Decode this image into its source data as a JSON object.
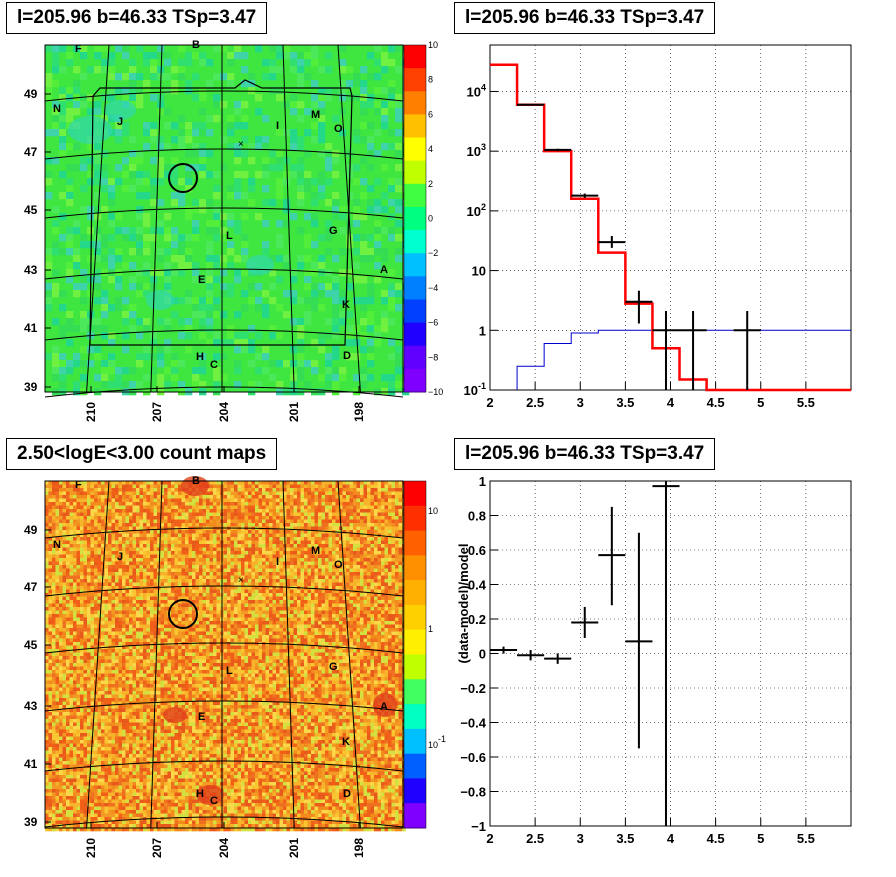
{
  "panels": {
    "tl_title": "l=205.96 b=46.33 TSp=3.47",
    "tr_title": "l=205.96 b=46.33 TSp=3.47",
    "bl_title": "2.50<logE<3.00 count maps",
    "br_title": "l=205.96 b=46.33 TSp=3.47"
  },
  "colors": {
    "tsmap_bg": "#3fe63f",
    "countmap_bg": "#f7a21c",
    "red_line": "#ff0000",
    "blue_line": "#0000cc",
    "data": "#000000"
  },
  "chart_data": [
    {
      "type": "heatmap",
      "name": "ts-map",
      "y_ticks": [
        "39",
        "41",
        "43",
        "45",
        "47",
        "49"
      ],
      "x_ticks": [
        "210",
        "207",
        "204",
        "201",
        "198"
      ],
      "colorbar_ticks": [
        "10",
        "8",
        "6",
        "4",
        "2",
        "0",
        "−2",
        "−4",
        "−6",
        "−8",
        "−10"
      ],
      "source_labels": [
        "F",
        "B",
        "N",
        "J",
        "I",
        "M",
        "O",
        "L",
        "G",
        "E",
        "A",
        "K",
        "H",
        "C",
        "D"
      ]
    },
    {
      "type": "line",
      "name": "spectrum",
      "log_y": true,
      "xlim": [
        2,
        6
      ],
      "ylim": [
        0.1,
        60000
      ],
      "x_ticks": [
        "2",
        "2.5",
        "3",
        "3.5",
        "4",
        "4.5",
        "5",
        "5.5"
      ],
      "y_ticks": [
        "10^-1",
        "1",
        "10",
        "10^2",
        "10^3",
        "10^4"
      ],
      "model_total": {
        "edges": [
          2.0,
          2.3,
          2.6,
          2.9,
          3.2,
          3.5,
          3.8,
          4.1,
          4.4,
          6.0
        ],
        "values": [
          28000,
          6000,
          1000,
          160,
          20,
          2.8,
          0.5,
          0.15,
          0.1
        ]
      },
      "model_source": {
        "edges": [
          2.3,
          2.6,
          2.9,
          3.2,
          6.0
        ],
        "values": [
          0.25,
          0.6,
          0.9,
          1.0
        ]
      },
      "data_points": [
        {
          "x": 2.45,
          "xerr": 0.15,
          "y": 6000,
          "ylo": 6000,
          "yhi": 6000
        },
        {
          "x": 2.75,
          "xerr": 0.15,
          "y": 1050,
          "ylo": 1000,
          "yhi": 1100
        },
        {
          "x": 3.05,
          "xerr": 0.15,
          "y": 180,
          "ylo": 165,
          "yhi": 195
        },
        {
          "x": 3.35,
          "xerr": 0.15,
          "y": 30,
          "ylo": 24,
          "yhi": 38
        },
        {
          "x": 3.65,
          "xerr": 0.15,
          "y": 3,
          "ylo": 1.3,
          "yhi": 4.6
        },
        {
          "x": 3.95,
          "xerr": 0.15,
          "y": 1,
          "ylo": 0.1,
          "yhi": 2.1
        },
        {
          "x": 4.25,
          "xerr": 0.15,
          "y": 1,
          "ylo": 0.1,
          "yhi": 2.1
        },
        {
          "x": 4.85,
          "xerr": 0.15,
          "y": 1,
          "ylo": 0.1,
          "yhi": 2.1
        }
      ]
    },
    {
      "type": "heatmap",
      "name": "count-map",
      "y_ticks": [
        "39",
        "41",
        "43",
        "45",
        "47",
        "49"
      ],
      "x_ticks": [
        "210",
        "207",
        "204",
        "201",
        "198"
      ],
      "colorbar_ticks": [
        "10",
        "1",
        "10^-1"
      ],
      "source_labels": [
        "F",
        "B",
        "N",
        "J",
        "I",
        "M",
        "O",
        "L",
        "G",
        "E",
        "A",
        "K",
        "H",
        "C",
        "D"
      ]
    },
    {
      "type": "scatter",
      "name": "residuals",
      "ylabel": "(data-model)/model",
      "xlim": [
        2,
        6
      ],
      "ylim": [
        -1,
        1
      ],
      "x_ticks": [
        "2",
        "2.5",
        "3",
        "3.5",
        "4",
        "4.5",
        "5",
        "5.5"
      ],
      "y_ticks": [
        "−1",
        "−0.8",
        "−0.6",
        "−0.4",
        "−0.2",
        "0",
        "0.2",
        "0.4",
        "0.6",
        "0.8",
        "1"
      ],
      "points": [
        {
          "x": 2.15,
          "xerr": 0.15,
          "y": 0.02,
          "ylo": 0.0,
          "yhi": 0.04
        },
        {
          "x": 2.45,
          "xerr": 0.15,
          "y": -0.01,
          "ylo": -0.04,
          "yhi": 0.02
        },
        {
          "x": 2.75,
          "xerr": 0.15,
          "y": -0.03,
          "ylo": -0.06,
          "yhi": 0.0
        },
        {
          "x": 3.05,
          "xerr": 0.15,
          "y": 0.18,
          "ylo": 0.09,
          "yhi": 0.27
        },
        {
          "x": 3.35,
          "xerr": 0.15,
          "y": 0.57,
          "ylo": 0.28,
          "yhi": 0.85
        },
        {
          "x": 3.65,
          "xerr": 0.15,
          "y": 0.07,
          "ylo": -0.55,
          "yhi": 0.7
        },
        {
          "x": 3.95,
          "xerr": 0.15,
          "y": 0.97,
          "ylo": -1.0,
          "yhi": 1.0
        }
      ]
    }
  ]
}
